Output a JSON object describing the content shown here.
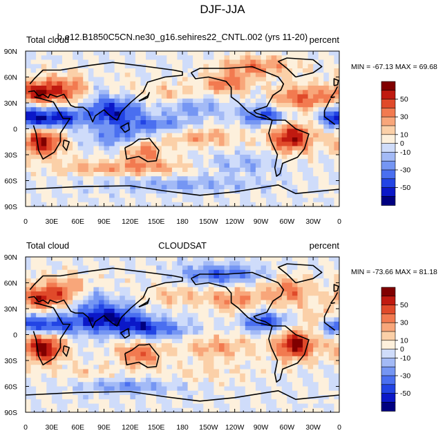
{
  "page_title": "DJF-JJA",
  "colorbar": {
    "colors": [
      "#000080",
      "#0b18c8",
      "#2244e4",
      "#4a6ff0",
      "#7596f3",
      "#a3baf6",
      "#cfdcfa",
      "#fdf0dc",
      "#fbd0a8",
      "#f8a67a",
      "#f27a50",
      "#e04a2a",
      "#c01a10",
      "#800000"
    ],
    "labels": [
      "50",
      "30",
      "10",
      "0",
      "-10",
      "-30",
      "-50"
    ]
  },
  "chart_data": [
    {
      "type": "heatmap",
      "title": "b.e12.B1850C5CN.ne30_g16.sehires22_CNTL.002 (yrs 11-20)",
      "left_label": "Total cloud",
      "right_label": "percent",
      "min_max_text": "MIN = -67.13 MAX =  69.68",
      "min": -67.13,
      "max": 69.68,
      "x_ticks": [
        "0",
        "30E",
        "60E",
        "90E",
        "120E",
        "150E",
        "180",
        "150W",
        "120W",
        "90W",
        "60W",
        "30W",
        "0"
      ],
      "y_ticks": [
        "90N",
        "60N",
        "30N",
        "0",
        "30S",
        "60S",
        "90S"
      ],
      "xlim": [
        0,
        360
      ],
      "ylim": [
        -90,
        90
      ],
      "blobs": [
        {
          "lon": 20,
          "lat": -15,
          "v": 60,
          "w": 16,
          "h": 12
        },
        {
          "lon": 305,
          "lat": -10,
          "v": 60,
          "w": 18,
          "h": 12
        },
        {
          "lon": 55,
          "lat": 45,
          "v": 45,
          "w": 35,
          "h": 12
        },
        {
          "lon": 15,
          "lat": 42,
          "v": 40,
          "w": 14,
          "h": 8
        },
        {
          "lon": 330,
          "lat": 35,
          "v": 35,
          "w": 15,
          "h": 10
        },
        {
          "lon": 300,
          "lat": 35,
          "v": 30,
          "w": 14,
          "h": 10
        },
        {
          "lon": 230,
          "lat": 52,
          "v": 35,
          "w": 20,
          "h": 8
        },
        {
          "lon": 265,
          "lat": 72,
          "v": 35,
          "w": 30,
          "h": 8
        },
        {
          "lon": 135,
          "lat": -25,
          "v": 35,
          "w": 16,
          "h": 10
        },
        {
          "lon": 205,
          "lat": -10,
          "v": 25,
          "w": 30,
          "h": 8
        },
        {
          "lon": 165,
          "lat": 40,
          "v": 20,
          "w": 20,
          "h": 8
        },
        {
          "lon": 85,
          "lat": -45,
          "v": 25,
          "w": 35,
          "h": 6
        },
        {
          "lon": 150,
          "lat": -45,
          "v": 20,
          "w": 30,
          "h": 6
        },
        {
          "lon": 100,
          "lat": 20,
          "v": -55,
          "w": 22,
          "h": 12
        },
        {
          "lon": 80,
          "lat": 45,
          "v": -35,
          "w": 15,
          "h": 12
        },
        {
          "lon": 20,
          "lat": 10,
          "v": -45,
          "w": 20,
          "h": 8
        },
        {
          "lon": 275,
          "lat": 15,
          "v": -45,
          "w": 20,
          "h": 8
        },
        {
          "lon": 355,
          "lat": 15,
          "v": -40,
          "w": 14,
          "h": 8
        },
        {
          "lon": 150,
          "lat": 5,
          "v": -30,
          "w": 30,
          "h": 6
        },
        {
          "lon": 190,
          "lat": 25,
          "v": -25,
          "w": 25,
          "h": 8
        },
        {
          "lon": 110,
          "lat": -10,
          "v": -30,
          "w": 25,
          "h": 8
        },
        {
          "lon": 45,
          "lat": 15,
          "v": -35,
          "w": 18,
          "h": 8
        },
        {
          "lon": 180,
          "lat": -65,
          "v": -20,
          "w": 60,
          "h": 6
        },
        {
          "lon": 250,
          "lat": -40,
          "v": -15,
          "w": 30,
          "h": 10
        }
      ]
    },
    {
      "type": "heatmap",
      "title": "CLOUDSAT",
      "left_label": "Total cloud",
      "right_label": "percent",
      "min_max_text": "MIN = -73.66 MAX =  81.18",
      "min": -73.66,
      "max": 81.18,
      "x_ticks": [
        "0",
        "30E",
        "60E",
        "90E",
        "120E",
        "150E",
        "180",
        "150W",
        "120W",
        "90W",
        "60W",
        "30W",
        "0"
      ],
      "y_ticks": [
        "90N",
        "60N",
        "30N",
        "0",
        "30S",
        "60S",
        "90S"
      ],
      "xlim": [
        0,
        360
      ],
      "ylim": [
        -90,
        90
      ],
      "blobs": [
        {
          "lon": 20,
          "lat": -15,
          "v": 70,
          "w": 16,
          "h": 12
        },
        {
          "lon": 310,
          "lat": -12,
          "v": 65,
          "w": 16,
          "h": 12
        },
        {
          "lon": 130,
          "lat": -22,
          "v": 40,
          "w": 18,
          "h": 10
        },
        {
          "lon": 45,
          "lat": 50,
          "v": 40,
          "w": 30,
          "h": 12
        },
        {
          "lon": 15,
          "lat": 40,
          "v": 35,
          "w": 14,
          "h": 8
        },
        {
          "lon": 300,
          "lat": 50,
          "v": 35,
          "w": 20,
          "h": 12
        },
        {
          "lon": 240,
          "lat": 40,
          "v": 30,
          "w": 20,
          "h": 10
        },
        {
          "lon": 220,
          "lat": -15,
          "v": 25,
          "w": 30,
          "h": 10
        },
        {
          "lon": 340,
          "lat": 20,
          "v": 25,
          "w": 14,
          "h": 8
        },
        {
          "lon": 175,
          "lat": 45,
          "v": 20,
          "w": 25,
          "h": 8
        },
        {
          "lon": 90,
          "lat": 20,
          "v": -60,
          "w": 25,
          "h": 12
        },
        {
          "lon": 75,
          "lat": 45,
          "v": -30,
          "w": 15,
          "h": 10
        },
        {
          "lon": 30,
          "lat": 10,
          "v": -45,
          "w": 22,
          "h": 8
        },
        {
          "lon": 275,
          "lat": 15,
          "v": -45,
          "w": 18,
          "h": 8
        },
        {
          "lon": 130,
          "lat": 10,
          "v": -35,
          "w": 20,
          "h": 8
        },
        {
          "lon": 355,
          "lat": 12,
          "v": -35,
          "w": 14,
          "h": 8
        },
        {
          "lon": 160,
          "lat": 5,
          "v": -25,
          "w": 25,
          "h": 8
        },
        {
          "lon": 250,
          "lat": 70,
          "v": -20,
          "w": 25,
          "h": 8
        },
        {
          "lon": 210,
          "lat": 70,
          "v": -30,
          "w": 25,
          "h": 8
        },
        {
          "lon": 120,
          "lat": -60,
          "v": -25,
          "w": 40,
          "h": 6
        },
        {
          "lon": 70,
          "lat": -45,
          "v": 15,
          "w": 20,
          "h": 6
        },
        {
          "lon": 200,
          "lat": -45,
          "v": 10,
          "w": 40,
          "h": 8
        }
      ]
    }
  ]
}
